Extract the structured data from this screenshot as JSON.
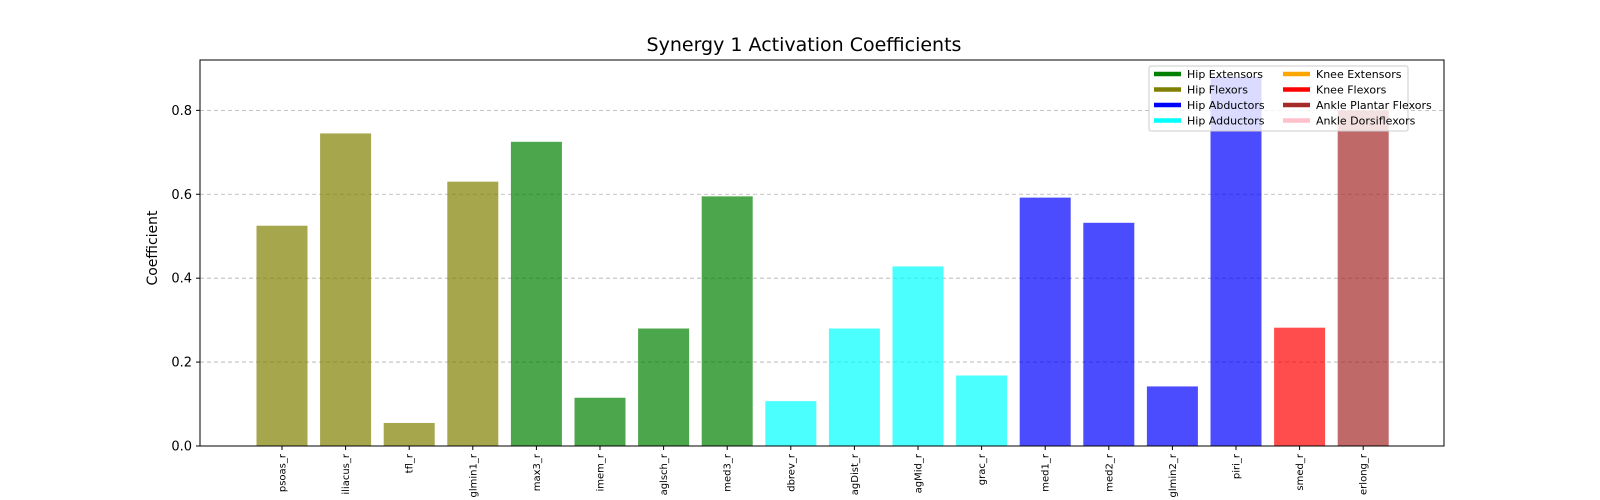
{
  "chart_data": {
    "type": "bar",
    "title": "Synergy 1 Activation Coefficients",
    "xlabel": "",
    "ylabel": "Coefficient",
    "ylim": [
      0,
      0.92
    ],
    "yticks": [
      0.0,
      0.2,
      0.4,
      0.6,
      0.8
    ],
    "grid": "y-dashed",
    "legend_placement": "top-right",
    "legend_ncol": 2,
    "groups": [
      {
        "name": "Hip Extensors",
        "color": "#008000"
      },
      {
        "name": "Hip Flexors",
        "color": "#808000"
      },
      {
        "name": "Hip Abductors",
        "color": "#0000ff"
      },
      {
        "name": "Hip Adductors",
        "color": "#00ffff"
      },
      {
        "name": "Knee Extensors",
        "color": "#ffa500"
      },
      {
        "name": "Knee Flexors",
        "color": "#ff0000"
      },
      {
        "name": "Ankle Plantar Flexors",
        "color": "#a52a2a"
      },
      {
        "name": "Ankle Dorsiflexors",
        "color": "#ffc0cb"
      }
    ],
    "categories": [
      "psoas_r",
      "iliacus_r",
      "tfl_r",
      "glmin1_r",
      "max3_r",
      "imem_r",
      "aglsch_r",
      "med3_r",
      "dbrev_r",
      "agDist_r",
      "agMid_r",
      "grac_r",
      "med1_r",
      "med2_r",
      "glmin2_r",
      "piri_r",
      "smed_r",
      "erlong_r"
    ],
    "values": [
      0.525,
      0.745,
      0.055,
      0.63,
      0.725,
      0.115,
      0.28,
      0.595,
      0.107,
      0.28,
      0.428,
      0.168,
      0.592,
      0.532,
      0.142,
      0.88,
      0.282,
      0.8
    ],
    "bar_groups": [
      "Hip Flexors",
      "Hip Flexors",
      "Hip Flexors",
      "Hip Flexors",
      "Hip Extensors",
      "Hip Extensors",
      "Hip Extensors",
      "Hip Extensors",
      "Hip Adductors",
      "Hip Adductors",
      "Hip Adductors",
      "Hip Adductors",
      "Hip Abductors",
      "Hip Abductors",
      "Hip Abductors",
      "Hip Abductors",
      "Knee Flexors",
      "Ankle Plantar Flexors"
    ],
    "bar_alpha": 0.7
  }
}
